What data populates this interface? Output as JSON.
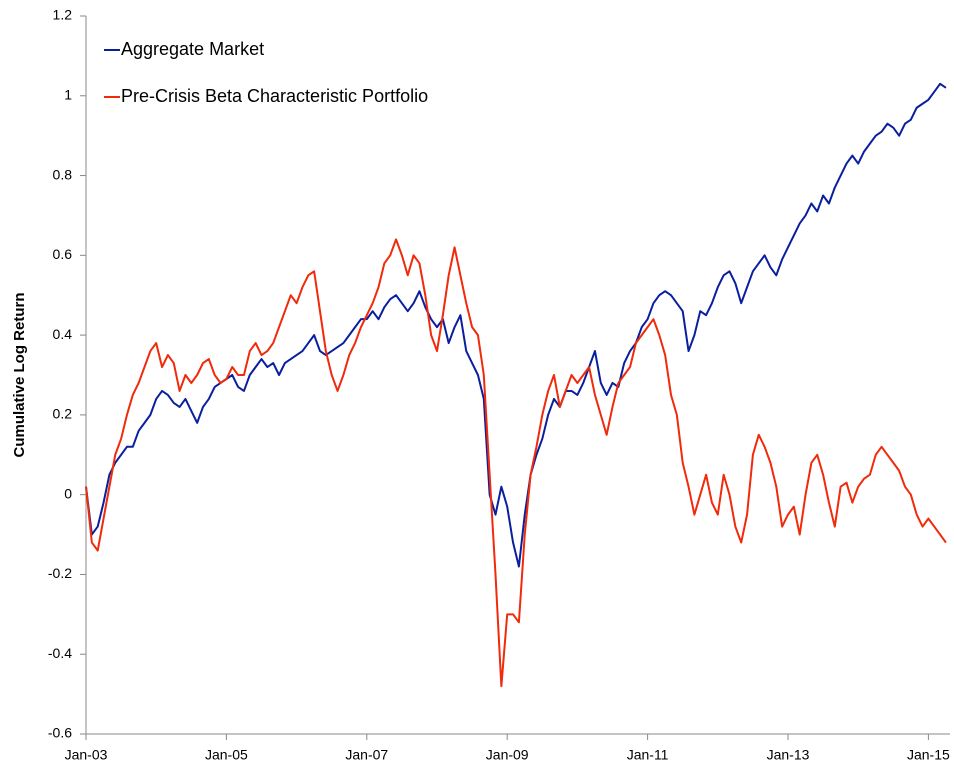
{
  "chart_data": {
    "type": "line",
    "ylabel": "Cumulative Log Return",
    "x": [
      "Jan-03",
      "Feb-03",
      "Mar-03",
      "Apr-03",
      "May-03",
      "Jun-03",
      "Jul-03",
      "Aug-03",
      "Sep-03",
      "Oct-03",
      "Nov-03",
      "Dec-03",
      "Jan-04",
      "Feb-04",
      "Mar-04",
      "Apr-04",
      "May-04",
      "Jun-04",
      "Jul-04",
      "Aug-04",
      "Sep-04",
      "Oct-04",
      "Nov-04",
      "Dec-04",
      "Jan-05",
      "Feb-05",
      "Mar-05",
      "Apr-05",
      "May-05",
      "Jun-05",
      "Jul-05",
      "Aug-05",
      "Sep-05",
      "Oct-05",
      "Nov-05",
      "Dec-05",
      "Jan-06",
      "Feb-06",
      "Mar-06",
      "Apr-06",
      "May-06",
      "Jun-06",
      "Jul-06",
      "Aug-06",
      "Sep-06",
      "Oct-06",
      "Nov-06",
      "Dec-06",
      "Jan-07",
      "Feb-07",
      "Mar-07",
      "Apr-07",
      "May-07",
      "Jun-07",
      "Jul-07",
      "Aug-07",
      "Sep-07",
      "Oct-07",
      "Nov-07",
      "Dec-07",
      "Jan-08",
      "Feb-08",
      "Mar-08",
      "Apr-08",
      "May-08",
      "Jun-08",
      "Jul-08",
      "Aug-08",
      "Sep-08",
      "Oct-08",
      "Nov-08",
      "Dec-08",
      "Jan-09",
      "Feb-09",
      "Mar-09",
      "Apr-09",
      "May-09",
      "Jun-09",
      "Jul-09",
      "Aug-09",
      "Sep-09",
      "Oct-09",
      "Nov-09",
      "Dec-09",
      "Jan-10",
      "Feb-10",
      "Mar-10",
      "Apr-10",
      "May-10",
      "Jun-10",
      "Jul-10",
      "Aug-10",
      "Sep-10",
      "Oct-10",
      "Nov-10",
      "Dec-10",
      "Jan-11",
      "Feb-11",
      "Mar-11",
      "Apr-11",
      "May-11",
      "Jun-11",
      "Jul-11",
      "Aug-11",
      "Sep-11",
      "Oct-11",
      "Nov-11",
      "Dec-11",
      "Jan-12",
      "Feb-12",
      "Mar-12",
      "Apr-12",
      "May-12",
      "Jun-12",
      "Jul-12",
      "Aug-12",
      "Sep-12",
      "Oct-12",
      "Nov-12",
      "Dec-12",
      "Jan-13",
      "Feb-13",
      "Mar-13",
      "Apr-13",
      "May-13",
      "Jun-13",
      "Jul-13",
      "Aug-13",
      "Sep-13",
      "Oct-13",
      "Nov-13",
      "Dec-13",
      "Jan-14",
      "Feb-14",
      "Mar-14",
      "Apr-14",
      "May-14",
      "Jun-14",
      "Jul-14",
      "Aug-14",
      "Sep-14",
      "Oct-14",
      "Nov-14",
      "Dec-14",
      "Jan-15",
      "Feb-15",
      "Mar-15",
      "Apr-15"
    ],
    "series": [
      {
        "name": "Aggregate Market",
        "color": "#0a1f9e",
        "values": [
          0.02,
          -0.1,
          -0.08,
          -0.02,
          0.05,
          0.08,
          0.1,
          0.12,
          0.12,
          0.16,
          0.18,
          0.2,
          0.24,
          0.26,
          0.25,
          0.23,
          0.22,
          0.24,
          0.21,
          0.18,
          0.22,
          0.24,
          0.27,
          0.28,
          0.29,
          0.3,
          0.27,
          0.26,
          0.3,
          0.32,
          0.34,
          0.32,
          0.33,
          0.3,
          0.33,
          0.34,
          0.35,
          0.36,
          0.38,
          0.4,
          0.36,
          0.35,
          0.36,
          0.37,
          0.38,
          0.4,
          0.42,
          0.44,
          0.44,
          0.46,
          0.44,
          0.47,
          0.49,
          0.5,
          0.48,
          0.46,
          0.48,
          0.51,
          0.47,
          0.44,
          0.42,
          0.44,
          0.38,
          0.42,
          0.45,
          0.36,
          0.33,
          0.3,
          0.24,
          0.0,
          -0.05,
          0.02,
          -0.03,
          -0.12,
          -0.18,
          -0.05,
          0.05,
          0.1,
          0.14,
          0.2,
          0.24,
          0.22,
          0.26,
          0.26,
          0.25,
          0.28,
          0.32,
          0.36,
          0.28,
          0.25,
          0.28,
          0.27,
          0.33,
          0.36,
          0.38,
          0.42,
          0.44,
          0.48,
          0.5,
          0.51,
          0.5,
          0.48,
          0.46,
          0.36,
          0.4,
          0.46,
          0.45,
          0.48,
          0.52,
          0.55,
          0.56,
          0.53,
          0.48,
          0.52,
          0.56,
          0.58,
          0.6,
          0.57,
          0.55,
          0.59,
          0.62,
          0.65,
          0.68,
          0.7,
          0.73,
          0.71,
          0.75,
          0.73,
          0.77,
          0.8,
          0.83,
          0.85,
          0.83,
          0.86,
          0.88,
          0.9,
          0.91,
          0.93,
          0.92,
          0.9,
          0.93,
          0.94,
          0.97,
          0.98,
          0.99,
          1.01,
          1.03,
          1.02
        ]
      },
      {
        "name": "Pre-Crisis Beta Characteristic Portfolio",
        "color": "#f02a0a",
        "values": [
          0.02,
          -0.12,
          -0.14,
          -0.06,
          0.02,
          0.1,
          0.14,
          0.2,
          0.25,
          0.28,
          0.32,
          0.36,
          0.38,
          0.32,
          0.35,
          0.33,
          0.26,
          0.3,
          0.28,
          0.3,
          0.33,
          0.34,
          0.3,
          0.28,
          0.29,
          0.32,
          0.3,
          0.3,
          0.36,
          0.38,
          0.35,
          0.36,
          0.38,
          0.42,
          0.46,
          0.5,
          0.48,
          0.52,
          0.55,
          0.56,
          0.46,
          0.36,
          0.3,
          0.26,
          0.3,
          0.35,
          0.38,
          0.42,
          0.45,
          0.48,
          0.52,
          0.58,
          0.6,
          0.64,
          0.6,
          0.55,
          0.6,
          0.58,
          0.5,
          0.4,
          0.36,
          0.45,
          0.55,
          0.62,
          0.55,
          0.48,
          0.42,
          0.4,
          0.3,
          0.05,
          -0.2,
          -0.48,
          -0.3,
          -0.3,
          -0.32,
          -0.1,
          0.05,
          0.12,
          0.2,
          0.26,
          0.3,
          0.22,
          0.26,
          0.3,
          0.28,
          0.3,
          0.32,
          0.25,
          0.2,
          0.15,
          0.22,
          0.28,
          0.3,
          0.32,
          0.38,
          0.4,
          0.42,
          0.44,
          0.4,
          0.35,
          0.25,
          0.2,
          0.08,
          0.02,
          -0.05,
          0.0,
          0.05,
          -0.02,
          -0.05,
          0.05,
          0.0,
          -0.08,
          -0.12,
          -0.05,
          0.1,
          0.15,
          0.12,
          0.08,
          0.02,
          -0.08,
          -0.05,
          -0.03,
          -0.1,
          0.0,
          0.08,
          0.1,
          0.05,
          -0.02,
          -0.08,
          0.02,
          0.03,
          -0.02,
          0.02,
          0.04,
          0.05,
          0.1,
          0.12,
          0.1,
          0.08,
          0.06,
          0.02,
          0.0,
          -0.05,
          -0.08,
          -0.06,
          -0.08,
          -0.1,
          -0.12
        ]
      }
    ],
    "xticks": [
      "Jan-03",
      "Jan-05",
      "Jan-07",
      "Jan-09",
      "Jan-11",
      "Jan-13",
      "Jan-15"
    ],
    "ylim": [
      -0.6,
      1.2
    ],
    "yticks": [
      -0.6,
      -0.4,
      -0.2,
      0,
      0.2,
      0.4,
      0.6,
      0.8,
      1,
      1.2
    ],
    "legend": "top-left",
    "grid": false
  }
}
